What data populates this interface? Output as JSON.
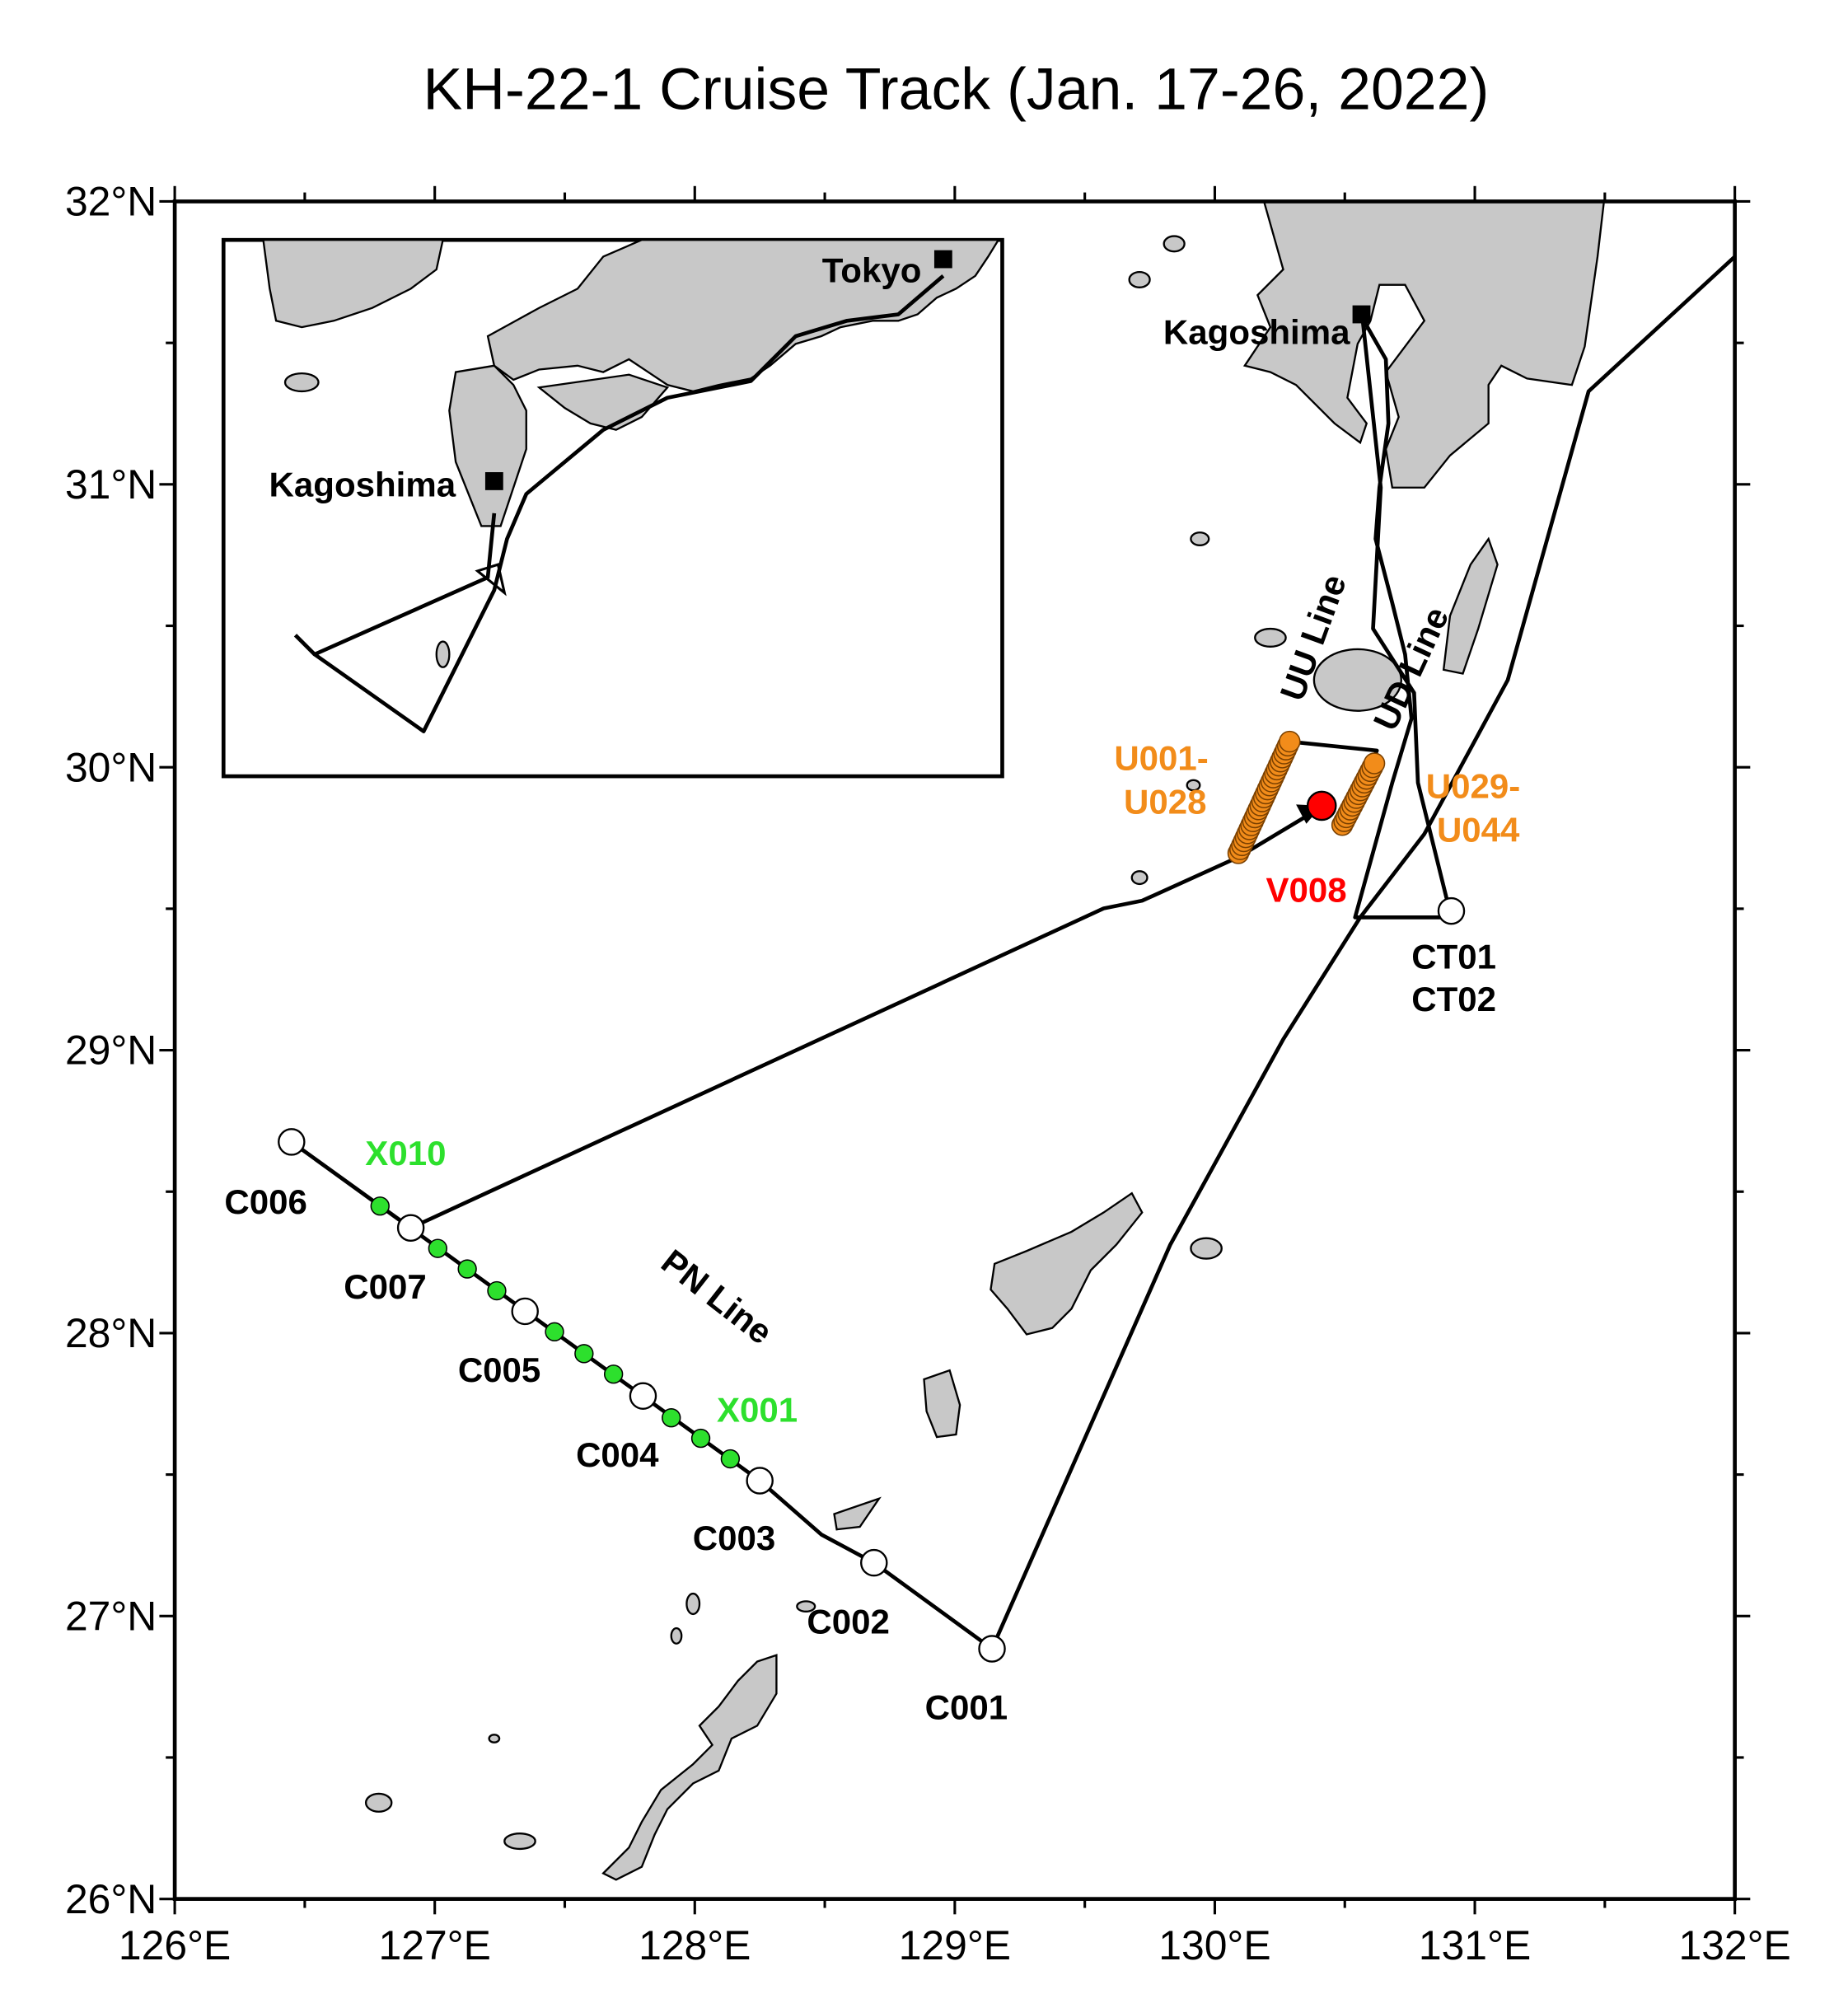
{
  "title": "KH-22-1 Cruise Track (Jan. 17-26, 2022)",
  "axes": {
    "x_labels": [
      "126°E",
      "127°E",
      "128°E",
      "129°E",
      "130°E",
      "131°E",
      "132°E"
    ],
    "y_labels": [
      "26°N",
      "27°N",
      "28°N",
      "29°N",
      "30°N",
      "31°N",
      "32°N"
    ]
  },
  "inset": {
    "tokyo": "Tokyo",
    "kagoshima": "Kagoshima"
  },
  "map_labels": {
    "kagoshima": "Kagoshima",
    "uu_line": "UU Line",
    "ud_line": "UD Line",
    "pn_line": "PN Line"
  },
  "stations": {
    "ctd": [
      "C001",
      "C002",
      "C003",
      "C004",
      "C005",
      "C006",
      "C007"
    ],
    "ct": [
      "CT01",
      "CT02"
    ],
    "xctd": [
      "X010",
      "X001"
    ],
    "uctd_west": [
      "U001-",
      "U028"
    ],
    "uctd_east": [
      "U029-",
      "U044"
    ],
    "vmp": "V008"
  }
}
